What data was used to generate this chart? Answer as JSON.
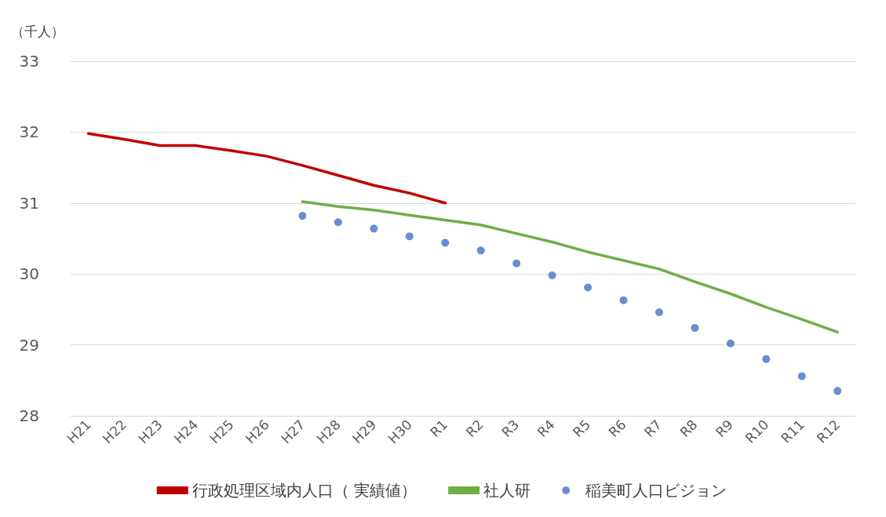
{
  "chart_data": {
    "type": "line",
    "ylabel": "（千人）",
    "categories": [
      "H21",
      "H22",
      "H23",
      "H24",
      "H25",
      "H26",
      "H27",
      "H28",
      "H29",
      "H30",
      "R1",
      "R2",
      "R3",
      "R4",
      "R5",
      "R6",
      "R7",
      "R8",
      "R9",
      "R10",
      "R11",
      "R12"
    ],
    "series": [
      {
        "name": "行政処理区域内人口（ 実績値）",
        "color": "#c00000",
        "values": [
          31.98,
          31.9,
          31.81,
          31.81,
          31.74,
          31.66,
          31.53,
          31.39,
          31.25,
          31.14,
          31.0,
          null,
          null,
          null,
          null,
          null,
          null,
          null,
          null,
          null,
          null,
          null
        ]
      },
      {
        "name": "社人研",
        "color": "#70ad47",
        "values": [
          null,
          null,
          null,
          null,
          null,
          null,
          31.02,
          30.95,
          30.9,
          30.83,
          30.76,
          30.69,
          30.57,
          30.45,
          30.31,
          30.19,
          30.07,
          29.89,
          29.72,
          29.53,
          29.36,
          29.18
        ]
      },
      {
        "name": "稲美町人口ビジョン",
        "type": "scatter",
        "color": "#4472c4",
        "values": [
          null,
          null,
          null,
          null,
          null,
          null,
          30.82,
          30.73,
          30.64,
          30.53,
          30.44,
          30.33,
          30.15,
          29.98,
          29.81,
          29.63,
          29.46,
          29.24,
          29.02,
          28.8,
          28.56,
          28.35
        ]
      }
    ],
    "ylim": [
      28,
      33
    ],
    "yticks": [
      28,
      29,
      30,
      31,
      32,
      33
    ],
    "grid": "y",
    "legend": "bottom",
    "line_style": "solid"
  }
}
